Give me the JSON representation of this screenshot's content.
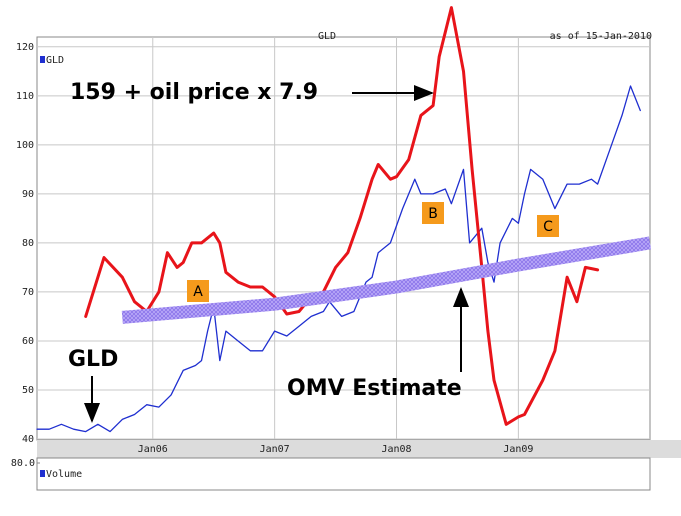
{
  "chart_data": {
    "type": "line",
    "title": "GLD",
    "subtitle": "as of 15-Jan-2010",
    "xlim": [
      2005.05,
      2010.08
    ],
    "xticks": [
      {
        "value": 2006,
        "label": "Jan06"
      },
      {
        "value": 2007,
        "label": "Jan07"
      },
      {
        "value": 2008,
        "label": "Jan08"
      },
      {
        "value": 2009,
        "label": "Jan09"
      }
    ],
    "ylim": [
      40,
      122
    ],
    "yticks": [
      40,
      50,
      60,
      70,
      80,
      90,
      100,
      110,
      120
    ],
    "grid": true,
    "series": [
      {
        "name": "GLD",
        "color": "#1f2fd0",
        "x": [
          2005.05,
          2005.15,
          2005.25,
          2005.35,
          2005.45,
          2005.55,
          2005.65,
          2005.75,
          2005.85,
          2005.95,
          2006.05,
          2006.15,
          2006.25,
          2006.35,
          2006.4,
          2006.45,
          2006.5,
          2006.55,
          2006.6,
          2006.7,
          2006.8,
          2006.9,
          2007.0,
          2007.1,
          2007.2,
          2007.3,
          2007.4,
          2007.45,
          2007.55,
          2007.65,
          2007.75,
          2007.8,
          2007.85,
          2007.95,
          2008.05,
          2008.15,
          2008.2,
          2008.3,
          2008.4,
          2008.45,
          2008.55,
          2008.6,
          2008.7,
          2008.75,
          2008.8,
          2008.85,
          2008.95,
          2009.0,
          2009.05,
          2009.1,
          2009.2,
          2009.3,
          2009.4,
          2009.5,
          2009.6,
          2009.65,
          2009.75,
          2009.85,
          2009.92,
          2010.0
        ],
        "values": [
          42,
          42,
          43,
          42,
          41.5,
          43,
          41.5,
          44,
          45,
          47,
          46.5,
          49,
          54,
          55,
          56,
          62,
          67,
          56,
          62,
          60,
          58,
          58,
          62,
          61,
          63,
          65,
          66,
          68,
          65,
          66,
          72,
          73,
          78,
          80,
          87,
          93,
          90,
          90,
          91,
          88,
          95,
          80,
          83,
          76,
          72,
          80,
          85,
          84,
          90,
          95,
          93,
          87,
          92,
          92,
          93,
          92,
          99,
          106,
          112,
          107
        ]
      },
      {
        "name": "159 + oil price x 7.9",
        "color": "#e8141a",
        "x": [
          2005.45,
          2005.6,
          2005.75,
          2005.85,
          2005.95,
          2006.05,
          2006.12,
          2006.2,
          2006.25,
          2006.32,
          2006.4,
          2006.5,
          2006.55,
          2006.6,
          2006.7,
          2006.8,
          2006.9,
          2007.0,
          2007.1,
          2007.2,
          2007.3,
          2007.4,
          2007.5,
          2007.6,
          2007.7,
          2007.8,
          2007.85,
          2007.95,
          2008.0,
          2008.1,
          2008.2,
          2008.3,
          2008.35,
          2008.45,
          2008.55,
          2008.62,
          2008.7,
          2008.75,
          2008.8,
          2008.9,
          2009.0,
          2009.05,
          2009.2,
          2009.3,
          2009.4,
          2009.48,
          2009.55,
          2009.65
        ],
        "values": [
          65,
          77,
          73,
          68,
          66,
          70,
          78,
          75,
          76,
          80,
          80,
          82,
          80,
          74,
          72,
          71,
          71,
          69,
          65.5,
          66,
          69,
          70,
          75,
          78,
          85,
          93,
          96,
          93,
          93.5,
          97,
          106,
          108,
          118,
          128,
          115,
          95,
          75,
          62,
          52,
          43,
          44.5,
          45,
          52,
          58,
          73,
          68,
          75,
          74.5
        ]
      },
      {
        "name": "OMV Estimate",
        "color": "#a48ff0",
        "x": [
          2005.75,
          2007.0,
          2008.0,
          2009.0,
          2010.08
        ],
        "values": [
          64.8,
          67.5,
          71,
          75.5,
          80
        ]
      }
    ],
    "annotations": [
      "A",
      "B",
      "C"
    ],
    "volume": {
      "label": "Volume",
      "yticks": [
        {
          "value": 80,
          "label": "80.0"
        }
      ]
    }
  }
}
